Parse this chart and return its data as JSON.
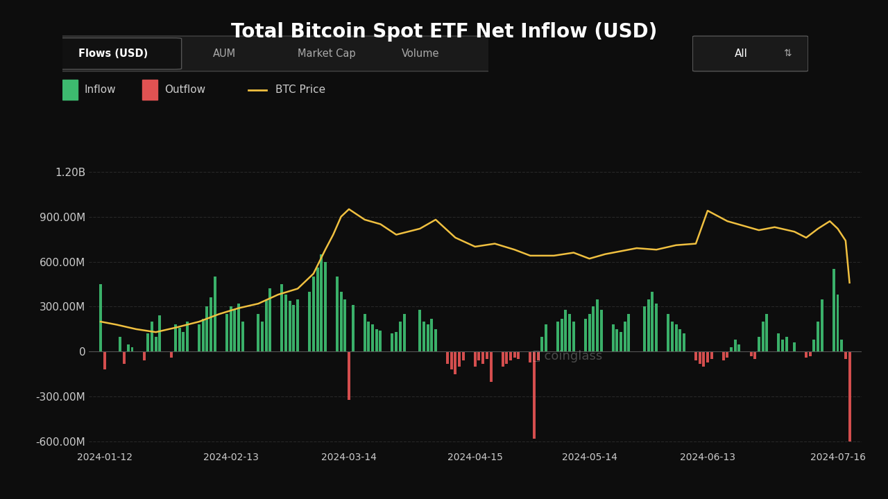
{
  "title": "Total Bitcoin Spot ETF Net Inflow (USD)",
  "background_color": "#0d0d0d",
  "plot_bg_color": "#0d0d0d",
  "grid_color": "#333333",
  "text_color": "#cccccc",
  "inflow_color": "#3dba6f",
  "outflow_color": "#e05252",
  "btc_price_color": "#f0c040",
  "ylim": [
    -650000000,
    1280000000
  ],
  "yticks": [
    -600000000,
    -300000000,
    0,
    300000000,
    600000000,
    900000000,
    1200000000
  ],
  "ytick_labels": [
    "-600.00M",
    "-300.00M",
    "0",
    "300.00M",
    "600.00M",
    "900.00M",
    "1.20B"
  ],
  "xtick_labels": [
    "2024-01-12",
    "2024-02-13",
    "2024-03-14",
    "2024-04-15",
    "2024-05-14",
    "2024-06-13",
    "2024-07-16"
  ],
  "legend_items": [
    "Inflow",
    "Outflow",
    "BTC Price"
  ],
  "tab_labels": [
    "Flows (USD)",
    "AUM",
    "Market Cap",
    "Volume"
  ],
  "dropdown_label": "All",
  "bar_dates": [
    "2024-01-11",
    "2024-01-12",
    "2024-01-16",
    "2024-01-17",
    "2024-01-18",
    "2024-01-19",
    "2024-01-22",
    "2024-01-23",
    "2024-01-24",
    "2024-01-25",
    "2024-01-26",
    "2024-01-29",
    "2024-01-30",
    "2024-01-31",
    "2024-02-01",
    "2024-02-02",
    "2024-02-05",
    "2024-02-06",
    "2024-02-07",
    "2024-02-08",
    "2024-02-09",
    "2024-02-12",
    "2024-02-13",
    "2024-02-14",
    "2024-02-15",
    "2024-02-16",
    "2024-02-20",
    "2024-02-21",
    "2024-02-22",
    "2024-02-23",
    "2024-02-26",
    "2024-02-27",
    "2024-02-28",
    "2024-02-29",
    "2024-03-01",
    "2024-03-04",
    "2024-03-05",
    "2024-03-06",
    "2024-03-07",
    "2024-03-08",
    "2024-03-11",
    "2024-03-12",
    "2024-03-13",
    "2024-03-14",
    "2024-03-15",
    "2024-03-18",
    "2024-03-19",
    "2024-03-20",
    "2024-03-21",
    "2024-03-22",
    "2024-03-25",
    "2024-03-26",
    "2024-03-27",
    "2024-03-28",
    "2024-04-01",
    "2024-04-02",
    "2024-04-03",
    "2024-04-04",
    "2024-04-05",
    "2024-04-08",
    "2024-04-09",
    "2024-04-10",
    "2024-04-11",
    "2024-04-12",
    "2024-04-15",
    "2024-04-16",
    "2024-04-17",
    "2024-04-18",
    "2024-04-19",
    "2024-04-22",
    "2024-04-23",
    "2024-04-24",
    "2024-04-25",
    "2024-04-26",
    "2024-04-29",
    "2024-04-30",
    "2024-05-01",
    "2024-05-02",
    "2024-05-03",
    "2024-05-06",
    "2024-05-07",
    "2024-05-08",
    "2024-05-09",
    "2024-05-10",
    "2024-05-13",
    "2024-05-14",
    "2024-05-15",
    "2024-05-16",
    "2024-05-17",
    "2024-05-20",
    "2024-05-21",
    "2024-05-22",
    "2024-05-23",
    "2024-05-24",
    "2024-05-28",
    "2024-05-29",
    "2024-05-30",
    "2024-05-31",
    "2024-06-03",
    "2024-06-04",
    "2024-06-05",
    "2024-06-06",
    "2024-06-07",
    "2024-06-10",
    "2024-06-11",
    "2024-06-12",
    "2024-06-13",
    "2024-06-14",
    "2024-06-17",
    "2024-06-18",
    "2024-06-19",
    "2024-06-20",
    "2024-06-21",
    "2024-06-24",
    "2024-06-25",
    "2024-06-26",
    "2024-06-27",
    "2024-06-28",
    "2024-07-01",
    "2024-07-02",
    "2024-07-03",
    "2024-07-05",
    "2024-07-08",
    "2024-07-09",
    "2024-07-10",
    "2024-07-11",
    "2024-07-12",
    "2024-07-15",
    "2024-07-16",
    "2024-07-17",
    "2024-07-18",
    "2024-07-19"
  ],
  "bar_values": [
    450000000,
    -120000000,
    100000000,
    -80000000,
    50000000,
    30000000,
    -60000000,
    120000000,
    200000000,
    100000000,
    240000000,
    -40000000,
    180000000,
    160000000,
    130000000,
    200000000,
    180000000,
    220000000,
    300000000,
    360000000,
    500000000,
    250000000,
    300000000,
    280000000,
    320000000,
    200000000,
    250000000,
    200000000,
    350000000,
    420000000,
    450000000,
    380000000,
    340000000,
    310000000,
    350000000,
    400000000,
    500000000,
    560000000,
    650000000,
    600000000,
    500000000,
    400000000,
    350000000,
    -320000000,
    310000000,
    250000000,
    200000000,
    180000000,
    150000000,
    140000000,
    120000000,
    130000000,
    200000000,
    250000000,
    280000000,
    200000000,
    180000000,
    220000000,
    150000000,
    -80000000,
    -120000000,
    -150000000,
    -100000000,
    -60000000,
    -100000000,
    -60000000,
    -80000000,
    -50000000,
    -200000000,
    -100000000,
    -80000000,
    -60000000,
    -40000000,
    -50000000,
    -70000000,
    -580000000,
    -60000000,
    100000000,
    180000000,
    200000000,
    220000000,
    280000000,
    250000000,
    200000000,
    220000000,
    250000000,
    300000000,
    350000000,
    280000000,
    180000000,
    150000000,
    130000000,
    200000000,
    250000000,
    300000000,
    350000000,
    400000000,
    320000000,
    250000000,
    200000000,
    180000000,
    150000000,
    120000000,
    -60000000,
    -80000000,
    -100000000,
    -70000000,
    -50000000,
    -60000000,
    -40000000,
    30000000,
    80000000,
    50000000,
    -30000000,
    -50000000,
    100000000,
    200000000,
    250000000,
    120000000,
    80000000,
    100000000,
    60000000,
    -40000000,
    -30000000,
    80000000,
    200000000,
    350000000,
    550000000,
    380000000,
    80000000,
    -50000000,
    -600000000
  ],
  "btc_price_dates": [
    "2024-01-11",
    "2024-01-15",
    "2024-01-20",
    "2024-01-25",
    "2024-01-30",
    "2024-02-05",
    "2024-02-10",
    "2024-02-15",
    "2024-02-20",
    "2024-02-25",
    "2024-03-01",
    "2024-03-05",
    "2024-03-08",
    "2024-03-10",
    "2024-03-12",
    "2024-03-14",
    "2024-03-18",
    "2024-03-22",
    "2024-03-26",
    "2024-03-29",
    "2024-04-01",
    "2024-04-05",
    "2024-04-10",
    "2024-04-15",
    "2024-04-20",
    "2024-04-25",
    "2024-04-29",
    "2024-05-05",
    "2024-05-10",
    "2024-05-14",
    "2024-05-18",
    "2024-05-22",
    "2024-05-26",
    "2024-05-31",
    "2024-06-05",
    "2024-06-10",
    "2024-06-13",
    "2024-06-18",
    "2024-06-22",
    "2024-06-26",
    "2024-06-30",
    "2024-07-05",
    "2024-07-08",
    "2024-07-11",
    "2024-07-14",
    "2024-07-16",
    "2024-07-18",
    "2024-07-19"
  ],
  "btc_price_values": [
    200000000,
    180000000,
    150000000,
    130000000,
    160000000,
    200000000,
    250000000,
    290000000,
    320000000,
    380000000,
    420000000,
    520000000,
    680000000,
    780000000,
    900000000,
    950000000,
    880000000,
    850000000,
    780000000,
    800000000,
    820000000,
    880000000,
    760000000,
    700000000,
    720000000,
    680000000,
    640000000,
    640000000,
    660000000,
    620000000,
    650000000,
    670000000,
    690000000,
    680000000,
    710000000,
    720000000,
    940000000,
    870000000,
    840000000,
    810000000,
    830000000,
    800000000,
    760000000,
    820000000,
    870000000,
    820000000,
    740000000,
    460000000
  ]
}
